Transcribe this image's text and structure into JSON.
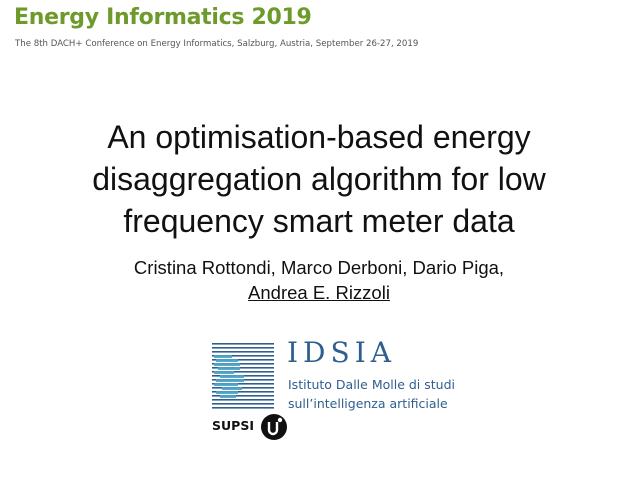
{
  "header": {
    "conference_title": "Energy Informatics 2019",
    "conference_subtitle": "The 8th DACH+ Conference on Energy Informatics, Salzburg, Austria, September 26-27, 2019"
  },
  "slide": {
    "title_lines": [
      "An optimisation-based energy",
      "disaggregation algorithm for low",
      "frequency smart meter data"
    ],
    "authors_line": "Cristina Rottondi, Marco Derboni, Dario Piga,",
    "presenter": "Andrea E. Rizzoli"
  },
  "logos": {
    "idsia_name": "IDSIA",
    "idsia_description_lines": [
      "Istituto Dalle Molle di studi",
      "sull’intelligenza artificiale"
    ],
    "supsi_name": "SUPSI",
    "colors": {
      "conference_green": "#6d9a2b",
      "idsia_blue": "#2f5f8f",
      "idsia_light_blue": "#4ea3c9"
    }
  }
}
